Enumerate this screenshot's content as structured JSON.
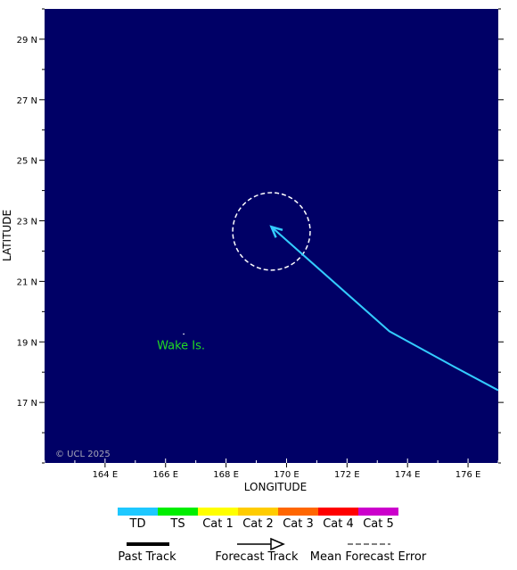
{
  "map": {
    "title": "",
    "background_color": "#000066",
    "x_axis": {
      "label": "LONGITUDE",
      "range": [
        162,
        177
      ],
      "ticks": [
        164,
        166,
        168,
        170,
        172,
        174,
        176
      ],
      "tick_labels": [
        "164 E",
        "166 E",
        "168 E",
        "170 E",
        "172 E",
        "174 E",
        "176 E"
      ]
    },
    "y_axis": {
      "label": "LATITUDE",
      "range": [
        15,
        30
      ],
      "ticks": [
        17,
        19,
        21,
        23,
        25,
        27,
        29
      ],
      "tick_labels": [
        "17 N",
        "19 N",
        "21 N",
        "23 N",
        "25 N",
        "27 N",
        "29 N"
      ]
    },
    "place_label": {
      "text": "Wake Is.",
      "lon": 166.6,
      "lat": 19.26,
      "color": "#22dd22"
    },
    "copyright": "© UCL 2025",
    "forecast_track": {
      "color": "#33ccff",
      "points": [
        [
          177,
          17.4
        ],
        [
          175.5,
          18.2
        ],
        [
          173.4,
          19.35
        ],
        [
          169.5,
          22.8
        ]
      ]
    },
    "forecast_error_circle": {
      "center_lon": 169.5,
      "center_lat": 22.65,
      "radius_deg": 1.28
    }
  },
  "legend": {
    "intensity": [
      {
        "label": "TD",
        "color": "#1ec8ff"
      },
      {
        "label": "TS",
        "color": "#00ee00"
      },
      {
        "label": "Cat 1",
        "color": "#ffff00"
      },
      {
        "label": "Cat 2",
        "color": "#ffcc00"
      },
      {
        "label": "Cat 3",
        "color": "#ff6600"
      },
      {
        "label": "Cat 4",
        "color": "#ff0000"
      },
      {
        "label": "Cat 5",
        "color": "#cc00cc"
      }
    ],
    "track_types": {
      "past": "Past Track",
      "forecast": "Forecast Track",
      "error": "Mean Forecast Error"
    }
  }
}
